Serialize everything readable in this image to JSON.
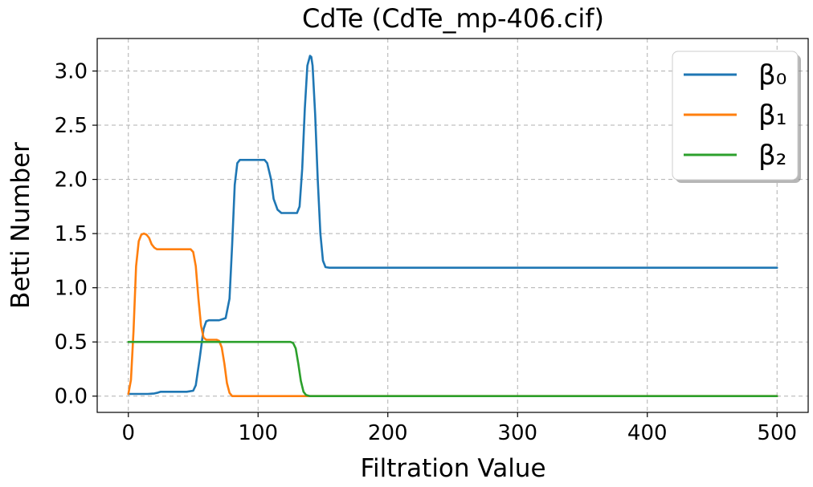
{
  "chart_data": {
    "type": "line",
    "title": "CdTe (CdTe_mp-406.cif)",
    "xlabel": "Filtration Value",
    "ylabel": "Betti Number",
    "xlim": [
      -24,
      524
    ],
    "ylim": [
      -0.15,
      3.3
    ],
    "xticks": [
      0,
      100,
      200,
      300,
      400,
      500
    ],
    "xtick_labels": [
      "0",
      "100",
      "200",
      "300",
      "400",
      "500"
    ],
    "yticks": [
      0.0,
      0.5,
      1.0,
      1.5,
      2.0,
      2.5,
      3.0
    ],
    "ytick_labels": [
      "0.0",
      "0.5",
      "1.0",
      "1.5",
      "2.0",
      "2.5",
      "3.0"
    ],
    "grid": true,
    "legend_position": "top-right",
    "series": [
      {
        "name": "β₀",
        "color": "#1f77b4",
        "x": [
          0,
          5,
          15,
          20,
          22,
          25,
          30,
          45,
          50,
          52,
          55,
          58,
          60,
          62,
          65,
          70,
          75,
          78,
          80,
          82,
          84,
          86,
          88,
          90,
          95,
          100,
          105,
          107,
          110,
          112,
          115,
          118,
          120,
          125,
          130,
          132,
          134,
          136,
          138,
          140,
          141,
          142,
          144,
          146,
          148,
          150,
          152,
          155,
          200,
          300,
          400,
          500
        ],
        "y": [
          0.02,
          0.02,
          0.02,
          0.025,
          0.03,
          0.04,
          0.04,
          0.04,
          0.05,
          0.1,
          0.35,
          0.62,
          0.69,
          0.7,
          0.7,
          0.7,
          0.72,
          0.9,
          1.4,
          1.95,
          2.15,
          2.18,
          2.18,
          2.18,
          2.18,
          2.18,
          2.18,
          2.15,
          2.0,
          1.82,
          1.72,
          1.69,
          1.69,
          1.69,
          1.69,
          1.75,
          2.1,
          2.65,
          3.05,
          3.14,
          3.13,
          3.05,
          2.6,
          2.0,
          1.5,
          1.25,
          1.19,
          1.185,
          1.185,
          1.185,
          1.185,
          1.185
        ]
      },
      {
        "name": "β₁",
        "color": "#ff7f0e",
        "x": [
          0,
          2,
          4,
          6,
          8,
          10,
          12,
          14,
          16,
          18,
          20,
          22,
          25,
          30,
          40,
          48,
          50,
          52,
          54,
          56,
          58,
          60,
          62,
          65,
          68,
          70,
          72,
          74,
          76,
          78,
          80,
          85,
          100,
          200,
          300,
          400,
          500
        ],
        "y": [
          0.02,
          0.15,
          0.6,
          1.2,
          1.43,
          1.49,
          1.5,
          1.49,
          1.46,
          1.4,
          1.37,
          1.355,
          1.355,
          1.355,
          1.355,
          1.355,
          1.33,
          1.2,
          0.9,
          0.65,
          0.54,
          0.52,
          0.52,
          0.52,
          0.52,
          0.51,
          0.45,
          0.3,
          0.12,
          0.03,
          0.0,
          0.0,
          0.0,
          0.0,
          0.0,
          0.0,
          0.0
        ]
      },
      {
        "name": "β₂",
        "color": "#2ca02c",
        "x": [
          0,
          20,
          60,
          100,
          125,
          127,
          129,
          131,
          133,
          135,
          137,
          140,
          150,
          200,
          300,
          400,
          500
        ],
        "y": [
          0.5,
          0.5,
          0.5,
          0.5,
          0.5,
          0.49,
          0.44,
          0.3,
          0.14,
          0.04,
          0.01,
          0.0,
          0.0,
          0.0,
          0.0,
          0.0,
          0.0
        ]
      }
    ]
  }
}
